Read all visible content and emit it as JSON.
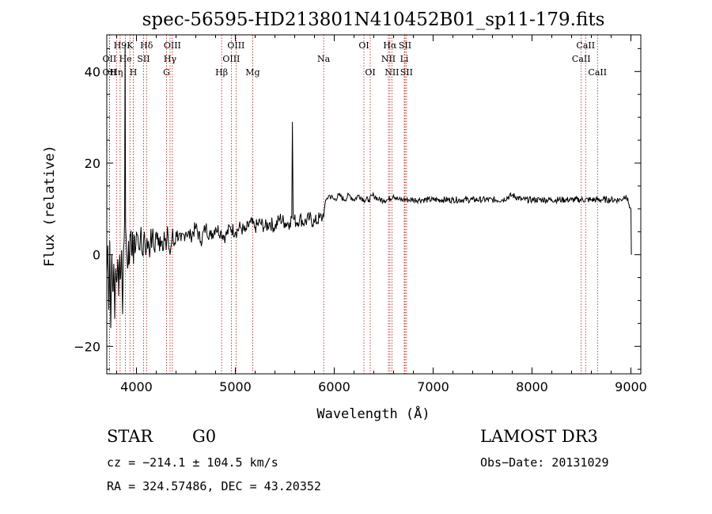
{
  "chart_data": {
    "type": "line",
    "title": "spec-56595-HD213801N410452B01_sp11-179.fits",
    "xlabel": "Wavelength (Å)",
    "ylabel": "Flux (relative)",
    "xlim": [
      3700,
      9100
    ],
    "ylim": [
      -26,
      48
    ],
    "x_ticks": [
      4000,
      5000,
      6000,
      7000,
      8000,
      9000
    ],
    "y_ticks": [
      -20,
      0,
      20,
      40
    ],
    "grid": false,
    "series": [
      {
        "values": [
          [
            3700,
            -4
          ],
          [
            3710,
            2
          ],
          [
            3720,
            -12
          ],
          [
            3730,
            3
          ],
          [
            3740,
            -16
          ],
          [
            3750,
            0
          ],
          [
            3760,
            -8
          ],
          [
            3770,
            -2
          ],
          [
            3780,
            -14
          ],
          [
            3790,
            -3
          ],
          [
            3800,
            -6
          ],
          [
            3810,
            -1
          ],
          [
            3820,
            -9
          ],
          [
            3830,
            0
          ],
          [
            3840,
            -5
          ],
          [
            3850,
            1
          ],
          [
            3860,
            -13
          ],
          [
            3870,
            2
          ],
          [
            3880,
            8
          ],
          [
            3885,
            46
          ],
          [
            3890,
            6
          ],
          [
            3900,
            1
          ],
          [
            3910,
            -3
          ],
          [
            3920,
            3
          ],
          [
            3930,
            -1
          ],
          [
            3940,
            4
          ],
          [
            3950,
            0
          ],
          [
            3960,
            5
          ],
          [
            3970,
            -2
          ],
          [
            3980,
            4
          ],
          [
            3990,
            1
          ],
          [
            4000,
            5
          ],
          [
            4020,
            2
          ],
          [
            4040,
            4
          ],
          [
            4060,
            0
          ],
          [
            4080,
            5
          ],
          [
            4100,
            1
          ],
          [
            4120,
            3
          ],
          [
            4140,
            2
          ],
          [
            4160,
            4
          ],
          [
            4180,
            1
          ],
          [
            4200,
            5
          ],
          [
            4220,
            2
          ],
          [
            4240,
            4
          ],
          [
            4260,
            3
          ],
          [
            4280,
            5
          ],
          [
            4300,
            1
          ],
          [
            4320,
            4
          ],
          [
            4340,
            0
          ],
          [
            4360,
            4
          ],
          [
            4380,
            2
          ],
          [
            4400,
            5
          ],
          [
            4450,
            3
          ],
          [
            4500,
            5
          ],
          [
            4550,
            4
          ],
          [
            4600,
            6
          ],
          [
            4650,
            3
          ],
          [
            4700,
            6
          ],
          [
            4750,
            4
          ],
          [
            4800,
            6
          ],
          [
            4850,
            5
          ],
          [
            4900,
            4
          ],
          [
            4950,
            6
          ],
          [
            5000,
            5
          ],
          [
            5050,
            6
          ],
          [
            5100,
            5
          ],
          [
            5150,
            7
          ],
          [
            5200,
            6
          ],
          [
            5250,
            7
          ],
          [
            5300,
            6
          ],
          [
            5350,
            7
          ],
          [
            5400,
            6
          ],
          [
            5450,
            8
          ],
          [
            5500,
            7
          ],
          [
            5550,
            7
          ],
          [
            5570,
            8
          ],
          [
            5577,
            29
          ],
          [
            5585,
            8
          ],
          [
            5620,
            7
          ],
          [
            5650,
            8
          ],
          [
            5700,
            7
          ],
          [
            5750,
            8
          ],
          [
            5800,
            7
          ],
          [
            5850,
            8
          ],
          [
            5880,
            8
          ],
          [
            5900,
            10
          ],
          [
            5920,
            12
          ],
          [
            5950,
            13
          ],
          [
            6000,
            12
          ],
          [
            6050,
            13
          ],
          [
            6100,
            12
          ],
          [
            6150,
            13
          ],
          [
            6200,
            12
          ],
          [
            6250,
            13
          ],
          [
            6300,
            12
          ],
          [
            6350,
            12
          ],
          [
            6400,
            13
          ],
          [
            6450,
            12
          ],
          [
            6500,
            12
          ],
          [
            6550,
            12
          ],
          [
            6600,
            13
          ],
          [
            6650,
            12
          ],
          [
            6700,
            12
          ],
          [
            6750,
            12
          ],
          [
            6800,
            12
          ],
          [
            6850,
            12
          ],
          [
            6900,
            12
          ],
          [
            6950,
            12
          ],
          [
            7000,
            12
          ],
          [
            7100,
            12
          ],
          [
            7200,
            12
          ],
          [
            7300,
            12
          ],
          [
            7400,
            12
          ],
          [
            7500,
            12
          ],
          [
            7600,
            12
          ],
          [
            7700,
            12
          ],
          [
            7800,
            13
          ],
          [
            7900,
            12
          ],
          [
            8000,
            12
          ],
          [
            8100,
            12
          ],
          [
            8200,
            12
          ],
          [
            8300,
            12
          ],
          [
            8400,
            12
          ],
          [
            8500,
            12
          ],
          [
            8600,
            12
          ],
          [
            8700,
            12
          ],
          [
            8800,
            12
          ],
          [
            8900,
            12
          ],
          [
            8950,
            13
          ],
          [
            8980,
            11
          ],
          [
            9000,
            10
          ],
          [
            9005,
            0
          ]
        ]
      }
    ],
    "spectral_lines": [
      {
        "label": "H9",
        "x": 3835,
        "row": 0
      },
      {
        "label": "K",
        "x": 3934,
        "row": 0
      },
      {
        "label": "Hδ",
        "x": 4102,
        "row": 0
      },
      {
        "label": "OIII",
        "x": 4363,
        "row": 0
      },
      {
        "label": "OIII",
        "x": 5007,
        "row": 0
      },
      {
        "label": "OI",
        "x": 6300,
        "row": 0
      },
      {
        "label": "Hα",
        "x": 6563,
        "row": 0
      },
      {
        "label": "SII",
        "x": 6716,
        "row": 0
      },
      {
        "label": "CaII",
        "x": 8542,
        "row": 0
      },
      {
        "label": "OII",
        "x": 3727,
        "row": 1
      },
      {
        "label": "He",
        "x": 3889,
        "row": 1
      },
      {
        "label": "SII",
        "x": 4072,
        "row": 1
      },
      {
        "label": "Hγ",
        "x": 4340,
        "row": 1
      },
      {
        "label": "OIII",
        "x": 4959,
        "row": 1
      },
      {
        "label": "Na",
        "x": 5893,
        "row": 1
      },
      {
        "label": "NII",
        "x": 6548,
        "row": 1
      },
      {
        "label": "Li",
        "x": 6708,
        "row": 1
      },
      {
        "label": "CaII",
        "x": 8498,
        "row": 1
      },
      {
        "label": "OII",
        "x": 3727,
        "row": 2
      },
      {
        "label": "Hη",
        "x": 3798,
        "row": 2
      },
      {
        "label": "H",
        "x": 3968,
        "row": 2
      },
      {
        "label": "G",
        "x": 4304,
        "row": 2
      },
      {
        "label": "Hβ",
        "x": 4861,
        "row": 2
      },
      {
        "label": "Mg",
        "x": 5175,
        "row": 2
      },
      {
        "label": "OI",
        "x": 6364,
        "row": 2
      },
      {
        "label": "NII",
        "x": 6583,
        "row": 2
      },
      {
        "label": "SII",
        "x": 6731,
        "row": 2
      },
      {
        "label": "CaII",
        "x": 8662,
        "row": 2
      }
    ]
  },
  "info": {
    "object_type": "STAR",
    "subclass": "G0",
    "survey": "LAMOST DR3",
    "redshift": "cz = −214.1 ± 104.5 km/s",
    "obs_date": "Obs−Date: 20131029",
    "coords": "RA = 324.57486, DEC =  43.20352"
  }
}
